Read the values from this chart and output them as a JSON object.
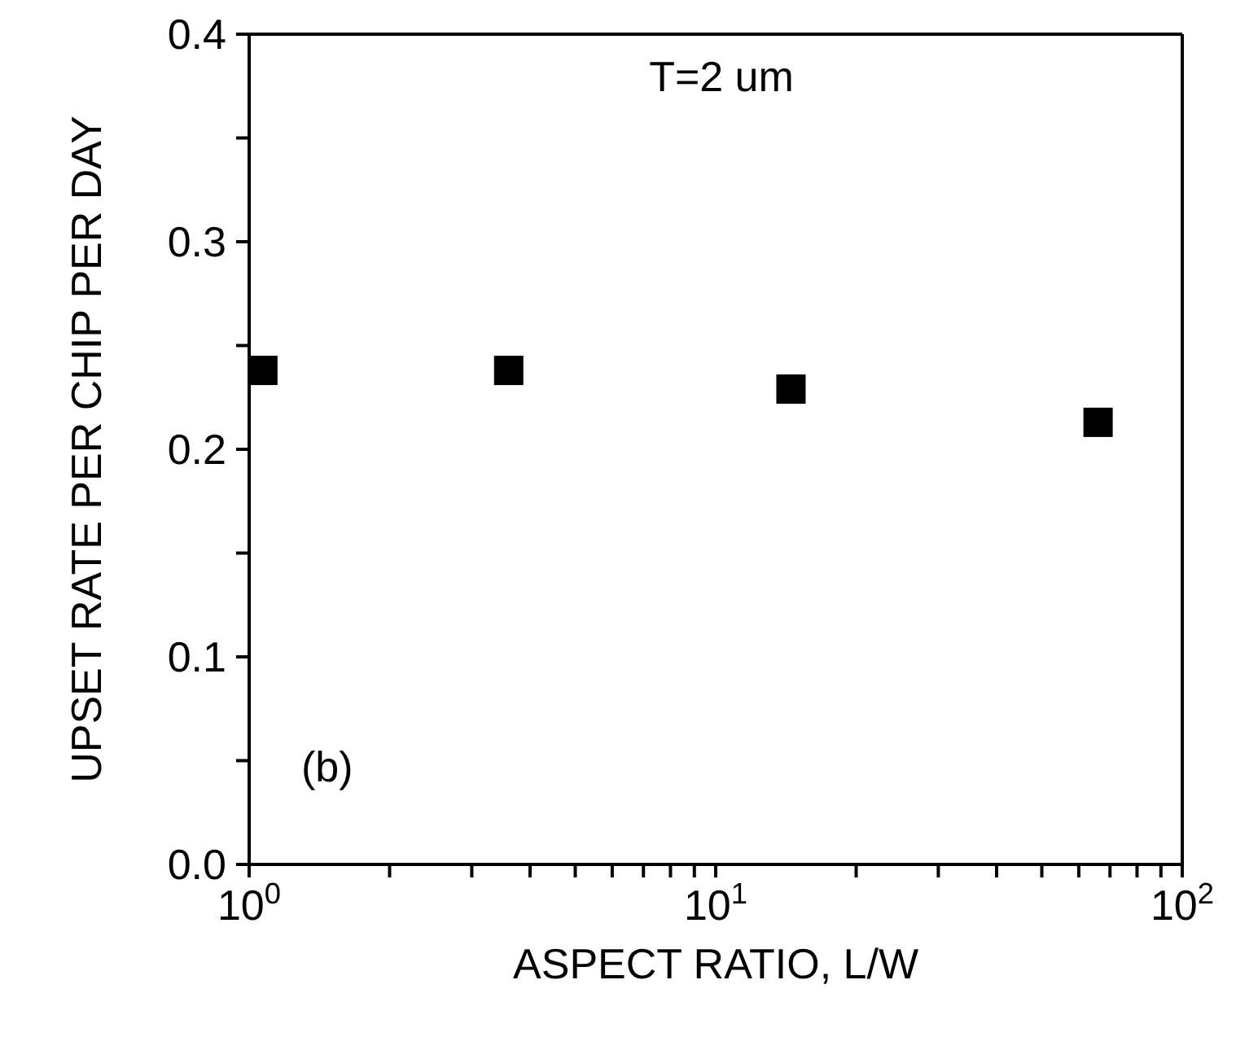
{
  "chart_data": {
    "type": "scatter",
    "xlabel": "ASPECT RATIO, L/W",
    "ylabel": "UPSET RATE PER CHIP PER DAY",
    "annotations": [
      "T=2 um",
      "(b)"
    ],
    "x": [
      1.07,
      3.6,
      14.5,
      66
    ],
    "series": [
      {
        "color": "#000000",
        "values": [
          0.238,
          0.238,
          0.229,
          0.213
        ]
      }
    ],
    "log": "x",
    "xlim": [
      1,
      100
    ],
    "ylim": [
      0,
      0.4
    ],
    "xticks": [
      {
        "value": 1,
        "label": "10$^{0}$"
      },
      {
        "value": 2,
        "label": null
      },
      {
        "value": 3,
        "label": null
      },
      {
        "value": 4,
        "label": null
      },
      {
        "value": 5,
        "label": null
      },
      {
        "value": 6,
        "label": null
      },
      {
        "value": 7,
        "label": null
      },
      {
        "value": 8,
        "label": null
      },
      {
        "value": 9,
        "label": null
      },
      {
        "value": 10,
        "label": "10$^{1}$"
      },
      {
        "value": 20,
        "label": null
      },
      {
        "value": 30,
        "label": null
      },
      {
        "value": 40,
        "label": null
      },
      {
        "value": 50,
        "label": null
      },
      {
        "value": 60,
        "label": null
      },
      {
        "value": 70,
        "label": null
      },
      {
        "value": 80,
        "label": null
      },
      {
        "value": 90,
        "label": null
      },
      {
        "value": 100,
        "label": "10$^{2}$"
      }
    ],
    "yticks": [
      {
        "value": 0,
        "label": "0.0"
      },
      {
        "value": 0.05,
        "label": null
      },
      {
        "value": 0.1,
        "label": "0.1"
      },
      {
        "value": 0.15,
        "label": null
      },
      {
        "value": 0.2,
        "label": "0.2"
      },
      {
        "value": 0.25,
        "label": null
      },
      {
        "value": 0.3,
        "label": "0.3"
      },
      {
        "value": 0.35,
        "label": null
      },
      {
        "value": 0.4,
        "label": "0.4"
      }
    ],
    "marker": "square",
    "legend": false
  }
}
